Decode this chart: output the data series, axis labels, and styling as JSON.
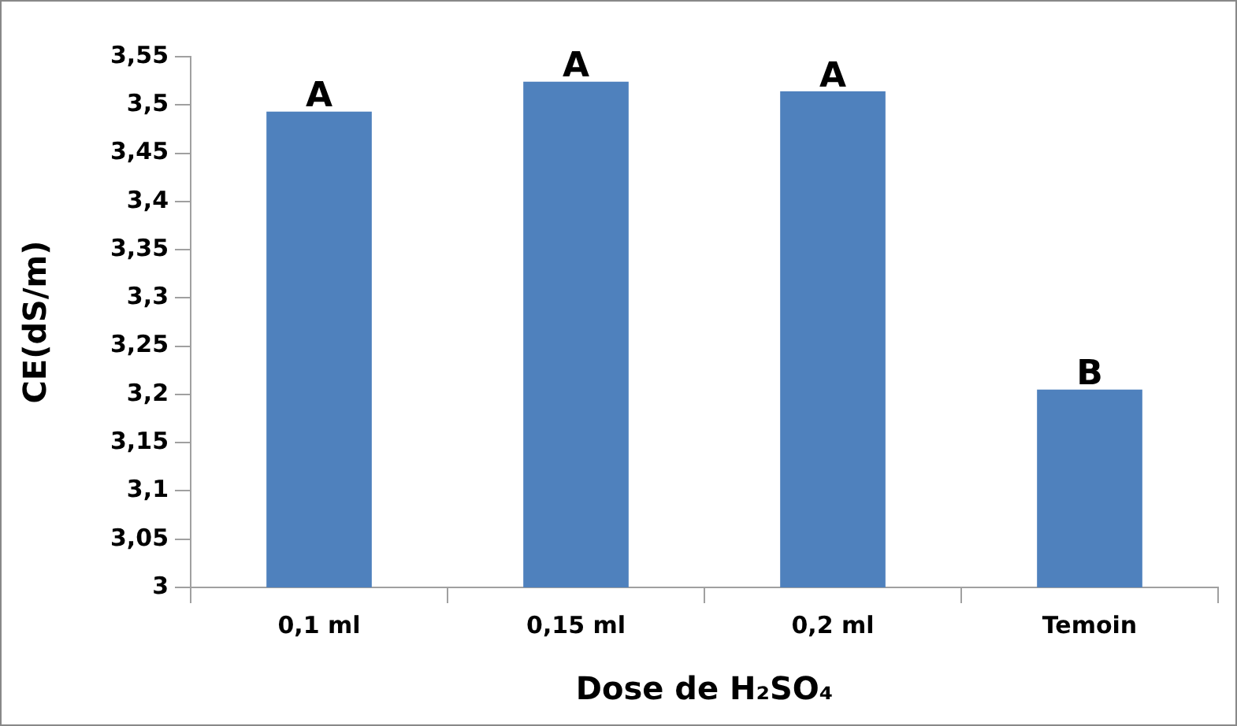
{
  "chart_data": {
    "type": "bar",
    "xlabel": "Dose de H₂SO₄",
    "ylabel": "CE(dS/m)",
    "categories": [
      "0,1 ml",
      "0,15 ml",
      "0,2 ml",
      "Temoin"
    ],
    "values": [
      3.493,
      3.524,
      3.514,
      3.205
    ],
    "color": "#4f81bd",
    "ylim": [
      3,
      3.55
    ],
    "yticks": [
      {
        "value": 3,
        "label": "3"
      },
      {
        "value": 3.05,
        "label": "3,05"
      },
      {
        "value": 3.1,
        "label": "3,1"
      },
      {
        "value": 3.15,
        "label": "3,15"
      },
      {
        "value": 3.2,
        "label": "3,2"
      },
      {
        "value": 3.25,
        "label": "3,25"
      },
      {
        "value": 3.3,
        "label": "3,3"
      },
      {
        "value": 3.35,
        "label": "3,35"
      },
      {
        "value": 3.4,
        "label": "3,4"
      },
      {
        "value": 3.45,
        "label": "3,45"
      },
      {
        "value": 3.5,
        "label": "3,5"
      },
      {
        "value": 3.55,
        "label": "3,55"
      }
    ],
    "annotations": [
      {
        "text": "A",
        "x": "0,1 ml",
        "y": 3.493
      },
      {
        "text": "A",
        "x": "0,15 ml",
        "y": 3.524
      },
      {
        "text": "A",
        "x": "0,2 ml",
        "y": 3.514
      },
      {
        "text": "B",
        "x": "Temoin",
        "y": 3.205
      }
    ],
    "grid": false,
    "legend": false
  }
}
